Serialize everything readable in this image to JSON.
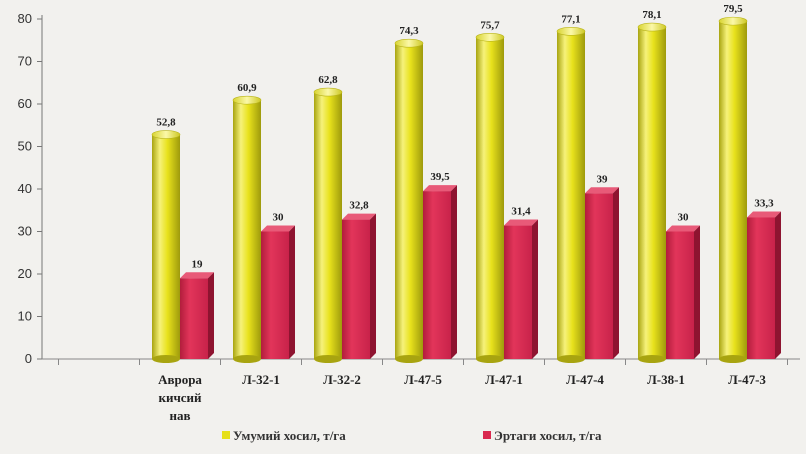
{
  "chart_data": {
    "type": "bar",
    "categories": [
      [
        "Аврора",
        "кичсий",
        "нав"
      ],
      [
        "Л-32-1"
      ],
      [
        "Л-32-2"
      ],
      [
        "Л-47-5"
      ],
      [
        "Л-47-1"
      ],
      [
        "Л-47-4"
      ],
      [
        "Л-38-1"
      ],
      [
        "Л-47-3"
      ]
    ],
    "series": [
      {
        "name": "Умумий хосил, т/га",
        "color": "#e6e01a",
        "values": [
          52.8,
          60.9,
          62.8,
          74.3,
          75.7,
          77.1,
          78.1,
          79.5
        ],
        "labels": [
          "52,8",
          "60,9",
          "62,8",
          "74,3",
          "75,7",
          "77,1",
          "78,1",
          "79,5"
        ]
      },
      {
        "name": "Эртаги хосил, т/га",
        "color": "#d9284e",
        "values": [
          19,
          30,
          32.8,
          39.5,
          31.4,
          39,
          30,
          33.3
        ],
        "labels": [
          "19",
          "30",
          "32,8",
          "39,5",
          "31,4",
          "39",
          "30",
          "33,3"
        ]
      }
    ],
    "ylim": [
      0,
      80
    ],
    "yticks": [
      0,
      10,
      20,
      30,
      40,
      50,
      60,
      70,
      80
    ],
    "grid": false,
    "legend": "bottom",
    "bar_style": "3d-cylinder-and-box"
  }
}
